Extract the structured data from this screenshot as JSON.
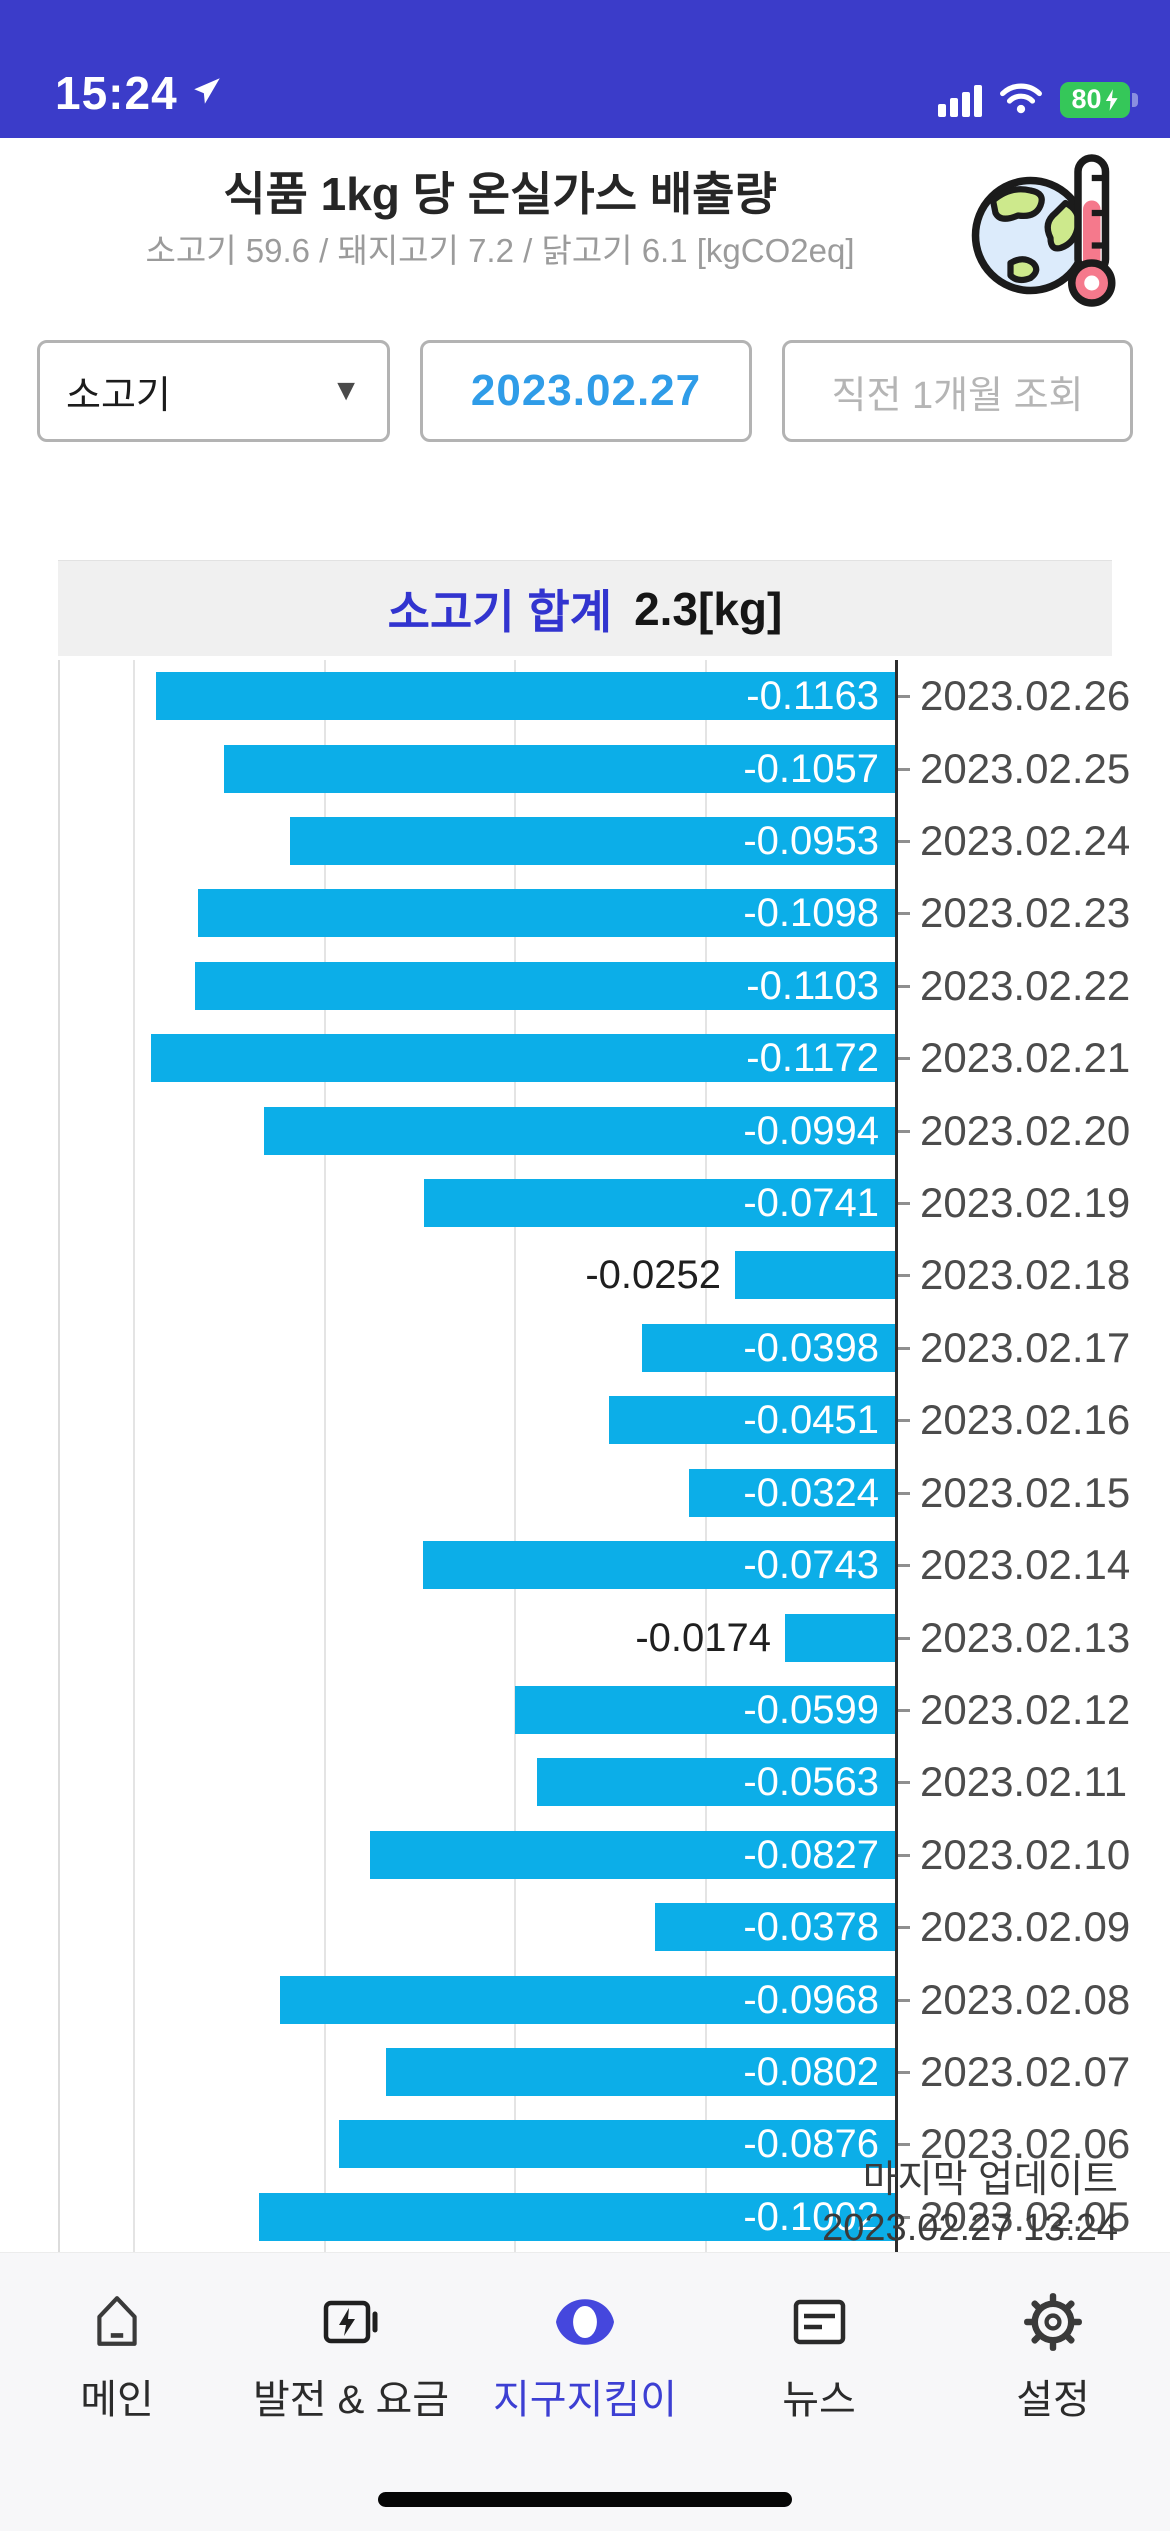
{
  "status_bar": {
    "time": "15:24",
    "battery_percent": "80"
  },
  "header": {
    "title": "식품 1kg 당 온실가스 배출량",
    "subtitle": "소고기 59.6 / 돼지고기 7.2 / 닭고기 6.1 [kgCO2eq]"
  },
  "controls": {
    "category_selected": "소고기",
    "date_value": "2023.02.27",
    "range_button_label": "직전 1개월 조회"
  },
  "summary": {
    "label": "소고기 합계",
    "value": "2.3[kg]"
  },
  "chart_data": {
    "type": "bar",
    "orientation": "horizontal",
    "title": "소고기 합계 2.3[kg]",
    "categories": [
      "2023.02.26",
      "2023.02.25",
      "2023.02.24",
      "2023.02.23",
      "2023.02.22",
      "2023.02.21",
      "2023.02.20",
      "2023.02.19",
      "2023.02.18",
      "2023.02.17",
      "2023.02.16",
      "2023.02.15",
      "2023.02.14",
      "2023.02.13",
      "2023.02.12",
      "2023.02.11",
      "2023.02.10",
      "2023.02.09",
      "2023.02.08",
      "2023.02.07",
      "2023.02.06",
      "2023.02.05"
    ],
    "values": [
      -0.1163,
      -0.1057,
      -0.0953,
      -0.1098,
      -0.1103,
      -0.1172,
      -0.0994,
      -0.0741,
      -0.0252,
      -0.0398,
      -0.0451,
      -0.0324,
      -0.0743,
      -0.0174,
      -0.0599,
      -0.0563,
      -0.0827,
      -0.0378,
      -0.0968,
      -0.0802,
      -0.0876,
      -0.1002
    ],
    "value_labels": [
      "-0.1163",
      "-0.1057",
      "-0.0953",
      "-0.1098",
      "-0.1103",
      "-0.1172",
      "-0.0994",
      "-0.0741",
      "-0.0252",
      "-0.0398",
      "-0.0451",
      "-0.0324",
      "-0.0743",
      "-0.0174",
      "-0.0599",
      "-0.0563",
      "-0.0827",
      "-0.0378",
      "-0.0968",
      "-0.0802",
      "-0.0876",
      "-0.1002"
    ],
    "outside_label_indices": [
      8,
      13
    ],
    "xlim": [
      -0.1328,
      0
    ],
    "grid_values": [
      -0.03,
      -0.06,
      -0.09,
      -0.12
    ],
    "bar_color": "#0CAEE8",
    "grid_on": true,
    "legend": null
  },
  "update_note": {
    "line1": "마지막 업데이트",
    "line2": "2023.02.27 13:24"
  },
  "nav": {
    "active_index": 2,
    "items": [
      {
        "label": "메인",
        "icon": "home-icon"
      },
      {
        "label": "발전 & 요금",
        "icon": "battery-bolt-icon"
      },
      {
        "label": "지구지킴이",
        "icon": "eye-icon"
      },
      {
        "label": "뉴스",
        "icon": "news-icon"
      },
      {
        "label": "설정",
        "icon": "gear-icon"
      }
    ]
  },
  "colors": {
    "status_bar_bg": "#3B3CC9",
    "accent_blue": "#3234CF",
    "date_blue": "#2F9CE8",
    "bar_cyan": "#0CAEE8",
    "battery_green": "#35C759"
  }
}
